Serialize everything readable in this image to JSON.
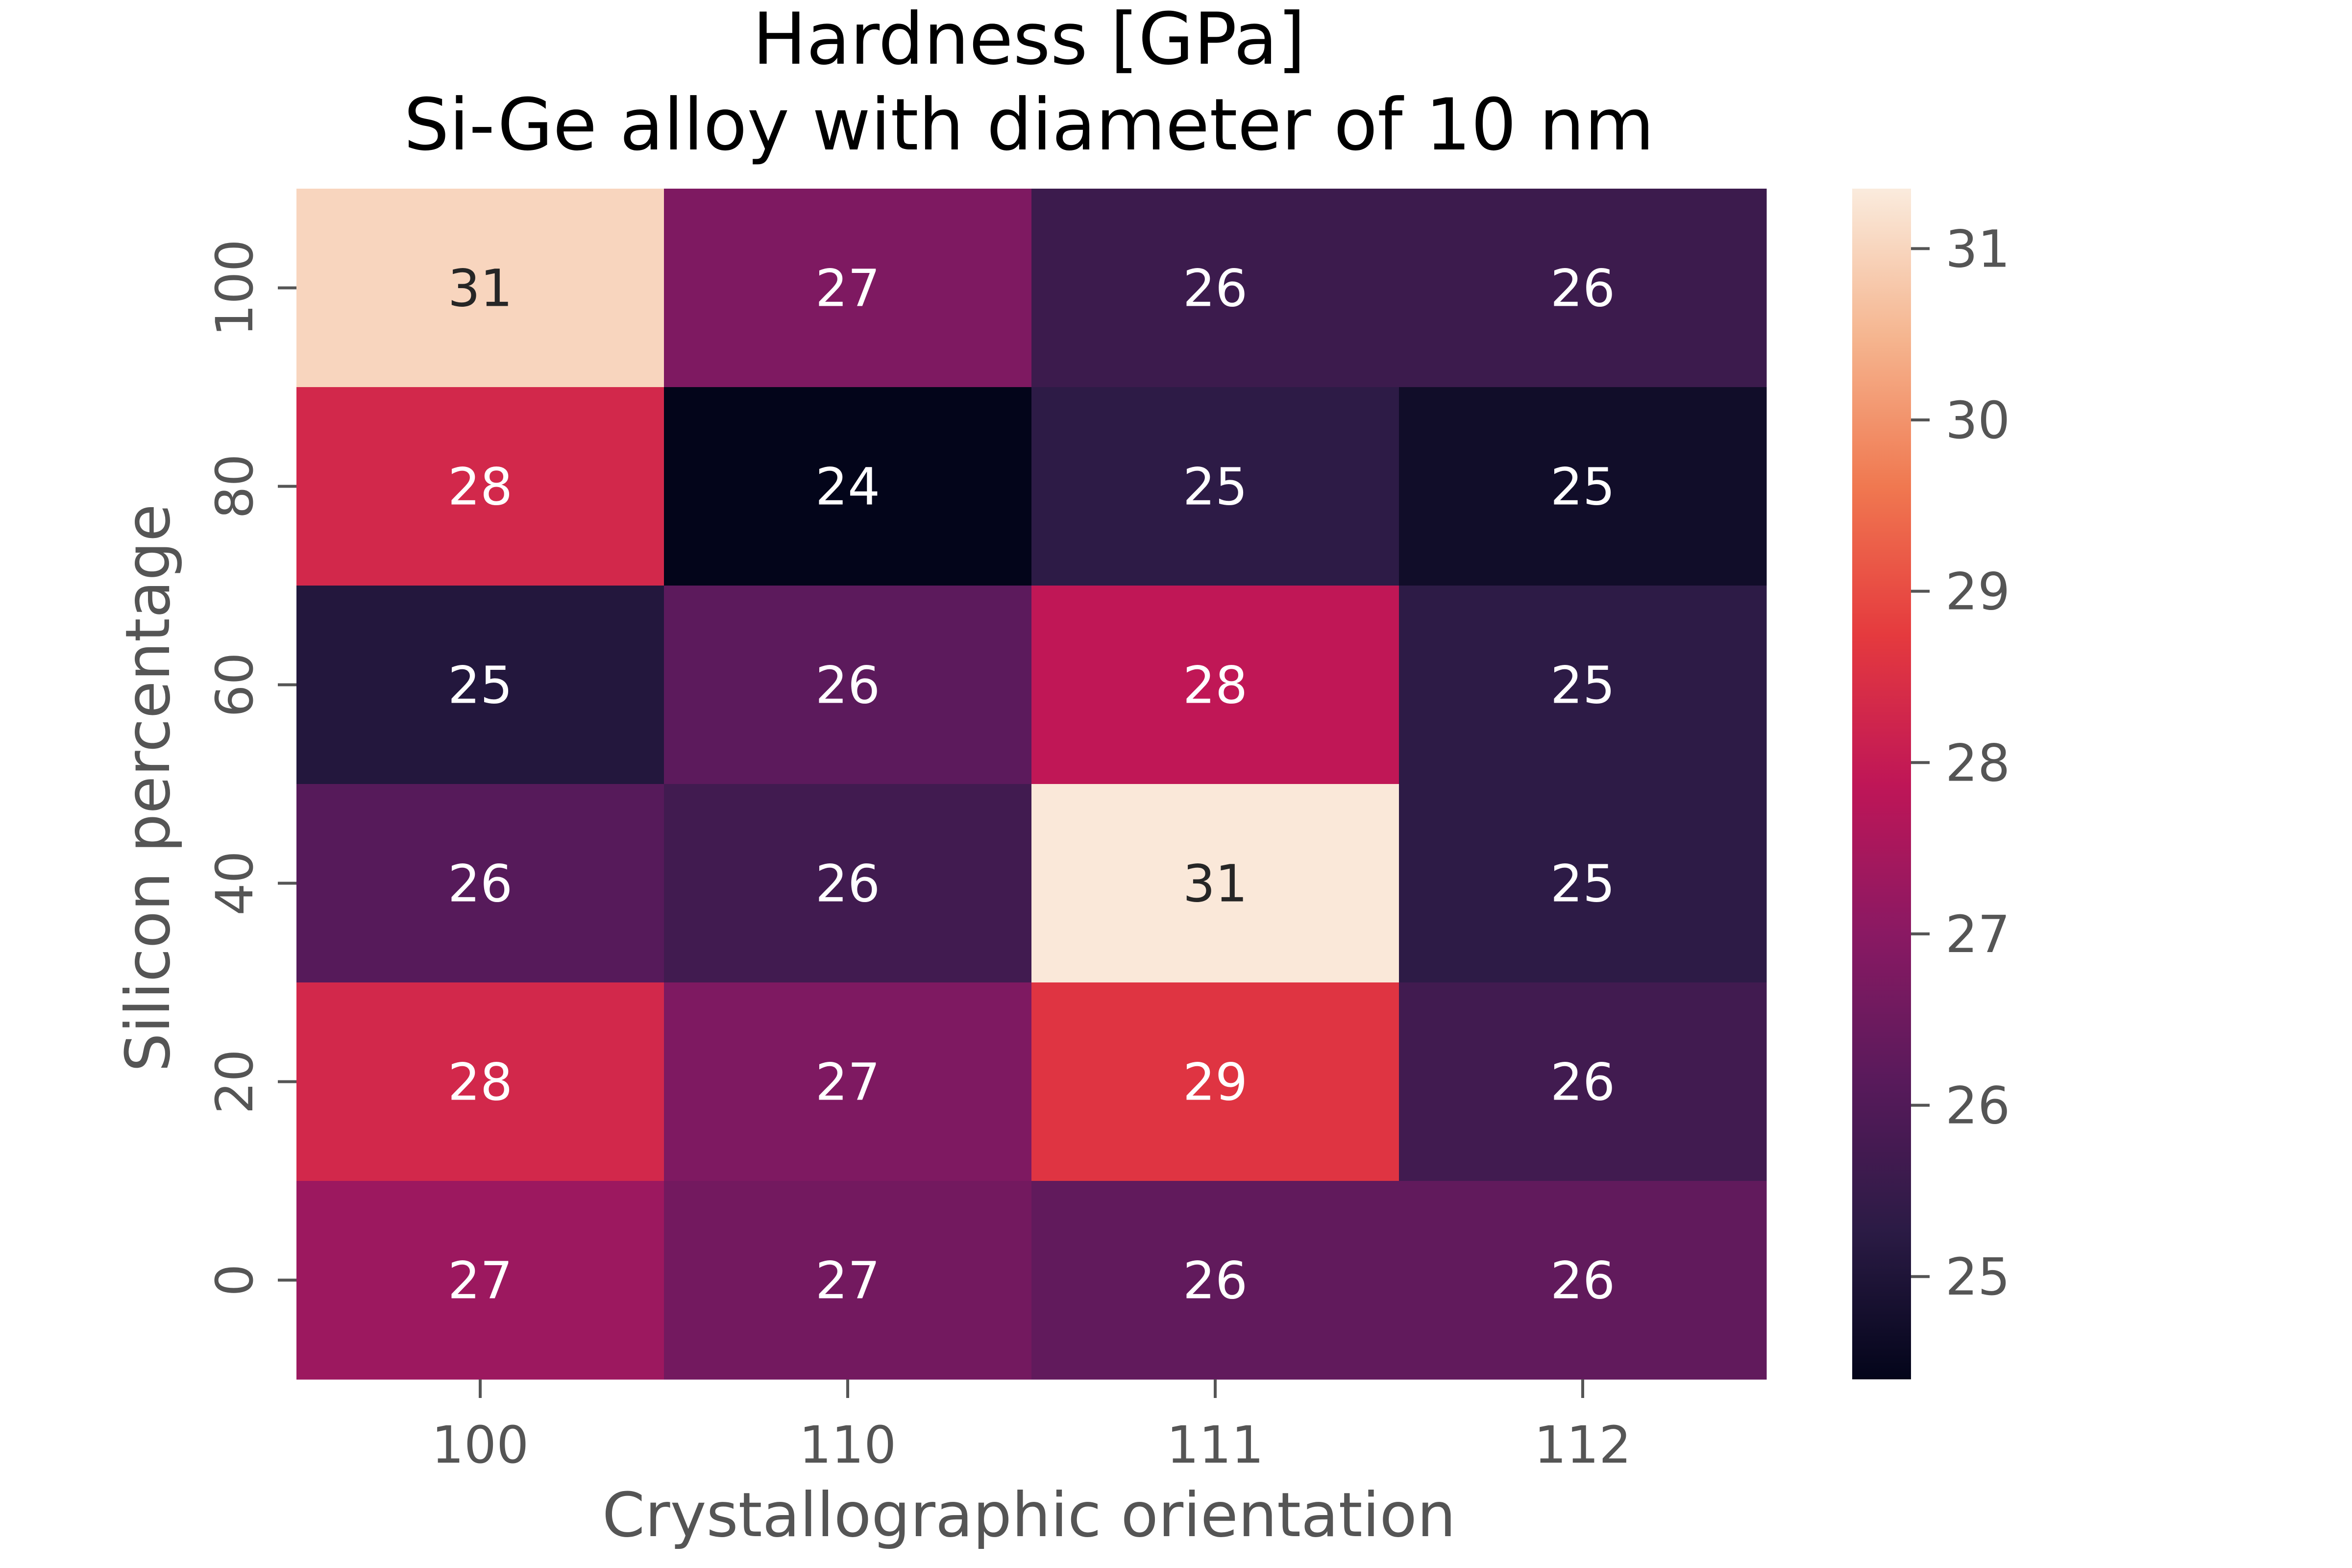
{
  "chart_data": {
    "type": "heatmap",
    "title": "Hardness [GPa]",
    "subtitle": "Si-Ge alloy with diameter of 10 nm",
    "xlabel": "Crystallographic orientation",
    "ylabel": "Silicon percentage",
    "x_categories": [
      "100",
      "110",
      "111",
      "112"
    ],
    "y_categories": [
      "100",
      "80",
      "60",
      "40",
      "20",
      "0"
    ],
    "values": [
      [
        31.0,
        26.8,
        25.6,
        25.6
      ],
      [
        28.3,
        24.4,
        25.3,
        24.7
      ],
      [
        25.1,
        26.2,
        27.9,
        25.3
      ],
      [
        26.1,
        25.7,
        31.3,
        25.3
      ],
      [
        28.3,
        26.8,
        28.6,
        25.7
      ],
      [
        27.3,
        26.6,
        26.3,
        26.3
      ]
    ],
    "labels": [
      [
        "31",
        "27",
        "26",
        "26"
      ],
      [
        "28",
        "24",
        "25",
        "25"
      ],
      [
        "25",
        "26",
        "28",
        "25"
      ],
      [
        "26",
        "26",
        "31",
        "25"
      ],
      [
        "28",
        "27",
        "29",
        "26"
      ],
      [
        "27",
        "27",
        "26",
        "26"
      ]
    ],
    "colorbar": {
      "colormap": "rocket",
      "vmin": 24.4,
      "vmax": 31.35,
      "ticks": [
        "25",
        "26",
        "27",
        "28",
        "29",
        "30",
        "31"
      ],
      "tick_values": [
        25,
        26,
        27,
        28,
        29,
        30,
        31
      ]
    },
    "colors": {
      "text_dark": "#262626",
      "text_light": "#ffffff"
    }
  }
}
